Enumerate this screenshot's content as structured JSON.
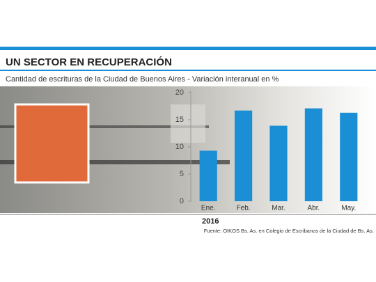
{
  "chart_data": {
    "type": "bar",
    "title": "UN SECTOR EN RECUPERACIÓN",
    "subtitle": "Cantidad de escrituras de la Ciudad de Buenos Aires - Variación interanual en %",
    "categories": [
      "Ene.",
      "Feb.",
      "Mar.",
      "Abr.",
      "May."
    ],
    "values": [
      9.3,
      16.7,
      13.9,
      17.1,
      16.3
    ],
    "color": "#1a8fd6",
    "xlabel": "2016",
    "ylim": [
      0,
      20
    ],
    "yticks": [
      0,
      5,
      10,
      15,
      20
    ],
    "grid": false,
    "source": "Fuente: OIKOS Bs. As. en Colegio de Escribanos de la Ciudad de Bs. As."
  }
}
